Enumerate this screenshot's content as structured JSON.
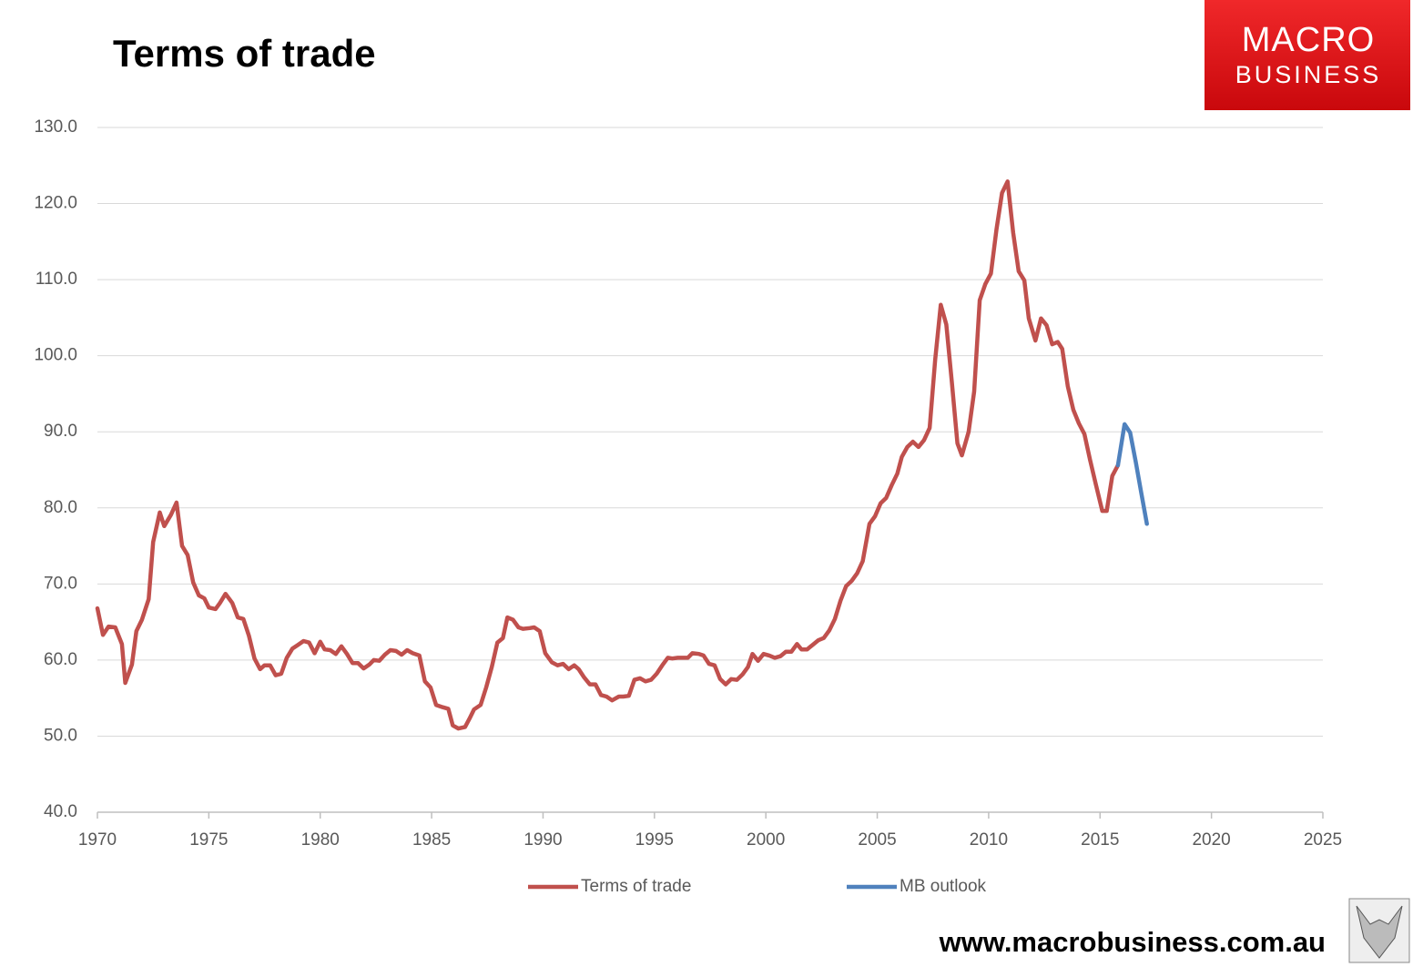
{
  "chart_data": {
    "type": "line",
    "title": "Terms of trade",
    "logo": [
      "MACRO",
      "BUSINESS"
    ],
    "footer": "www.macrobusiness.com.au",
    "xlim": [
      1970,
      2025
    ],
    "xticks": [
      1970,
      1975,
      1980,
      1985,
      1990,
      1995,
      2000,
      2005,
      2010,
      2015,
      2020,
      2025
    ],
    "ylim": [
      40,
      130
    ],
    "yticks": [
      {
        "value": 40,
        "label": "40.0"
      },
      {
        "value": 50,
        "label": "50.0"
      },
      {
        "value": 60,
        "label": "60.0"
      },
      {
        "value": 70,
        "label": "70.0"
      },
      {
        "value": 80,
        "label": "80.0"
      },
      {
        "value": 90,
        "label": "90.0"
      },
      {
        "value": 100,
        "label": "100.0"
      },
      {
        "value": 110,
        "label": "110.0"
      },
      {
        "value": 120,
        "label": "120.0"
      },
      {
        "value": 130,
        "label": "130.0"
      }
    ],
    "grid": true,
    "legend": "bottom",
    "series": [
      {
        "name": "Terms of trade",
        "color": "#c0504d",
        "x": [
          1970.0,
          1970.25,
          1970.5,
          1970.8,
          1971.1,
          1971.25,
          1971.55,
          1971.75,
          1972.0,
          1972.3,
          1972.5,
          1972.8,
          1973.0,
          1973.3,
          1973.55,
          1973.8,
          1974.05,
          1974.3,
          1974.55,
          1974.8,
          1975.0,
          1975.3,
          1975.5,
          1975.75,
          1976.05,
          1976.3,
          1976.55,
          1976.8,
          1977.05,
          1977.3,
          1977.5,
          1977.75,
          1978.0,
          1978.25,
          1978.5,
          1978.75,
          1979.0,
          1979.25,
          1979.5,
          1979.75,
          1980.0,
          1980.2,
          1980.45,
          1980.7,
          1980.95,
          1981.2,
          1981.45,
          1981.7,
          1981.95,
          1982.2,
          1982.4,
          1982.65,
          1982.9,
          1983.15,
          1983.4,
          1983.65,
          1983.9,
          1984.15,
          1984.45,
          1984.7,
          1984.95,
          1985.2,
          1985.5,
          1985.75,
          1985.95,
          1986.2,
          1986.5,
          1986.7,
          1986.9,
          1987.2,
          1987.45,
          1987.7,
          1987.95,
          1988.2,
          1988.4,
          1988.65,
          1988.9,
          1989.1,
          1989.4,
          1989.6,
          1989.85,
          1990.1,
          1990.4,
          1990.65,
          1990.9,
          1991.15,
          1991.4,
          1991.6,
          1991.85,
          1992.1,
          1992.35,
          1992.6,
          1992.85,
          1993.1,
          1993.4,
          1993.6,
          1993.85,
          1994.1,
          1994.35,
          1994.6,
          1994.85,
          1995.1,
          1995.35,
          1995.6,
          1995.8,
          1996.05,
          1996.3,
          1996.5,
          1996.7,
          1997.0,
          1997.2,
          1997.45,
          1997.7,
          1997.95,
          1998.2,
          1998.45,
          1998.7,
          1998.95,
          1999.2,
          1999.4,
          1999.65,
          1999.9,
          2000.15,
          2000.4,
          2000.65,
          2000.9,
          2001.15,
          2001.4,
          2001.6,
          2001.85,
          2002.1,
          2002.35,
          2002.6,
          2002.85,
          2003.1,
          2003.35,
          2003.6,
          2003.85,
          2004.1,
          2004.35,
          2004.65,
          2004.9,
          2005.15,
          2005.4,
          2005.65,
          2005.9,
          2006.1,
          2006.35,
          2006.6,
          2006.85,
          2007.1,
          2007.35,
          2007.6,
          2007.85,
          2008.1,
          2008.35,
          2008.6,
          2008.8,
          2009.1,
          2009.35,
          2009.6,
          2009.85,
          2010.1,
          2010.35,
          2010.6,
          2010.85,
          2011.1,
          2011.35,
          2011.6,
          2011.8,
          2012.1,
          2012.35,
          2012.6,
          2012.85,
          2013.1,
          2013.3,
          2013.55,
          2013.8,
          2014.05,
          2014.3,
          2014.55,
          2014.8,
          2015.1,
          2015.3,
          2015.55,
          2015.8
        ],
        "values": [
          66.8,
          63.3,
          64.4,
          64.3,
          62.1,
          57.0,
          59.4,
          63.8,
          65.3,
          68.0,
          75.5,
          79.4,
          77.6,
          79.1,
          80.7,
          75.0,
          73.8,
          70.2,
          68.5,
          68.1,
          66.9,
          66.7,
          67.5,
          68.7,
          67.5,
          65.6,
          65.4,
          63.2,
          60.2,
          58.8,
          59.3,
          59.3,
          58.0,
          58.2,
          60.3,
          61.5,
          62.0,
          62.5,
          62.3,
          60.9,
          62.4,
          61.4,
          61.3,
          60.8,
          61.8,
          60.8,
          59.6,
          59.6,
          58.9,
          59.4,
          60.0,
          59.9,
          60.7,
          61.3,
          61.2,
          60.7,
          61.3,
          60.9,
          60.6,
          57.2,
          56.4,
          54.1,
          53.8,
          53.6,
          51.4,
          51.0,
          51.2,
          52.3,
          53.5,
          54.1,
          56.4,
          59.1,
          62.3,
          62.9,
          65.6,
          65.3,
          64.3,
          64.1,
          64.2,
          64.3,
          63.8,
          60.9,
          59.7,
          59.3,
          59.5,
          58.8,
          59.3,
          58.8,
          57.7,
          56.8,
          56.8,
          55.4,
          55.2,
          54.7,
          55.2,
          55.2,
          55.3,
          57.4,
          57.6,
          57.2,
          57.4,
          58.2,
          59.3,
          60.3,
          60.2,
          60.3,
          60.3,
          60.3,
          60.9,
          60.8,
          60.6,
          59.5,
          59.3,
          57.5,
          56.8,
          57.5,
          57.4,
          58.1,
          59.1,
          60.8,
          59.9,
          60.8,
          60.6,
          60.3,
          60.5,
          61.1,
          61.1,
          62.1,
          61.4,
          61.4,
          62.0,
          62.6,
          62.9,
          63.9,
          65.4,
          67.8,
          69.7,
          70.4,
          71.4,
          73.0,
          77.9,
          78.9,
          80.6,
          81.3,
          83.0,
          84.5,
          86.7,
          88.0,
          88.7,
          88.0,
          88.9,
          90.5,
          99.5,
          106.7,
          104.1,
          96.5,
          88.5,
          86.9,
          90.0,
          95.3,
          107.3,
          109.4,
          110.8,
          116.6,
          121.4,
          122.9,
          116.2,
          111.1,
          109.9,
          104.9,
          102.0,
          104.9,
          104.0,
          101.5,
          101.8,
          100.9,
          96.0,
          92.9,
          91.1,
          89.7,
          86.3,
          83.2,
          79.6,
          79.6,
          84.2,
          85.6
        ]
      },
      {
        "name": "MB outlook",
        "color": "#4f81bd",
        "x": [
          2015.8,
          2016.1,
          2016.35,
          2016.6,
          2016.85,
          2017.1
        ],
        "values": [
          85.6,
          91.0,
          89.9,
          86.1,
          82.0,
          77.9
        ]
      }
    ]
  }
}
